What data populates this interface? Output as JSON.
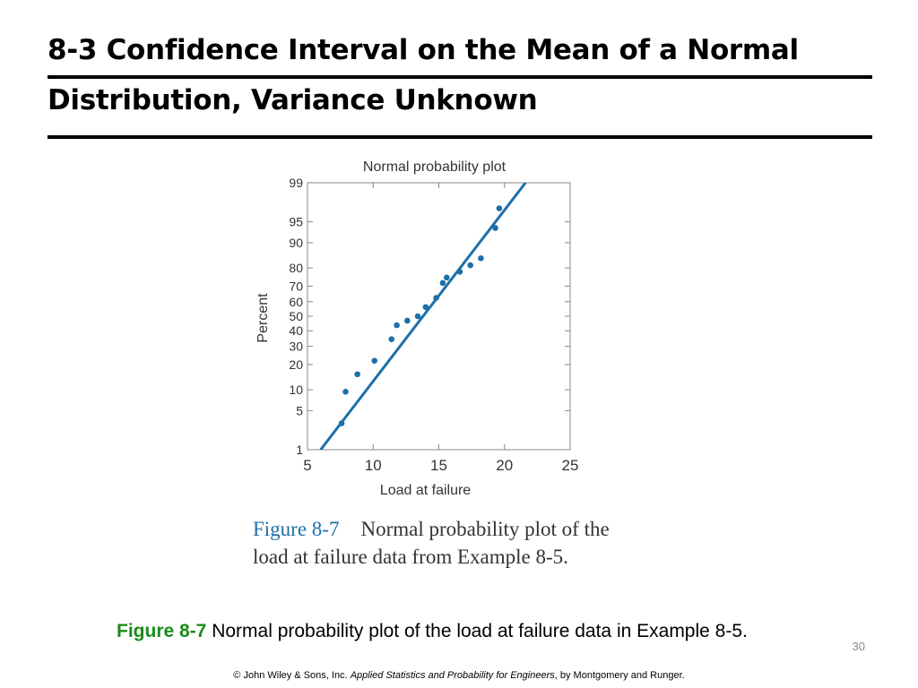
{
  "slide": {
    "title": "8-3 Confidence Interval on the Mean of a Normal Distribution, Variance Unknown",
    "slide_number": "30"
  },
  "book_caption": {
    "figure_ref": "Figure 8-7",
    "text": "Normal probability plot of the load at failure data from Example 8-5."
  },
  "slide_caption": {
    "figure_ref": "Figure 8-7",
    "text": " Normal probability plot of the load at failure data in Example 8-5."
  },
  "footer": {
    "copyright": "© John Wiley & Sons, Inc.",
    "book": "Applied Statistics and Probability for Engineers",
    "authors": ", by Montgomery and Runger."
  },
  "chart_data": {
    "type": "scatter",
    "title": "Normal probability plot",
    "xlabel": "Load at failure",
    "ylabel": "Percent",
    "xlim": [
      5,
      25
    ],
    "x_ticks": [
      5,
      10,
      15,
      20,
      25
    ],
    "y_ticks": [
      1,
      5,
      10,
      20,
      30,
      40,
      50,
      60,
      70,
      80,
      90,
      95,
      99
    ],
    "y_scale": "normal-probability",
    "grid": false,
    "points": [
      {
        "x": 7.6,
        "y": 3.1
      },
      {
        "x": 7.9,
        "y": 9.4
      },
      {
        "x": 8.8,
        "y": 15.6
      },
      {
        "x": 10.1,
        "y": 21.9
      },
      {
        "x": 11.4,
        "y": 34.4
      },
      {
        "x": 11.8,
        "y": 43.8
      },
      {
        "x": 12.6,
        "y": 46.9
      },
      {
        "x": 13.4,
        "y": 50.0
      },
      {
        "x": 14.0,
        "y": 56.3
      },
      {
        "x": 14.8,
        "y": 62.5
      },
      {
        "x": 15.3,
        "y": 71.9
      },
      {
        "x": 15.6,
        "y": 75.0
      },
      {
        "x": 16.6,
        "y": 78.1
      },
      {
        "x": 17.4,
        "y": 81.3
      },
      {
        "x": 18.2,
        "y": 84.4
      },
      {
        "x": 19.3,
        "y": 93.8
      },
      {
        "x": 19.6,
        "y": 97.0
      }
    ],
    "fit_line": {
      "x": [
        6.0,
        21.6
      ],
      "y": [
        1,
        99
      ]
    },
    "colors": {
      "points": "#1d6fa8",
      "line": "#1d6fa8",
      "text": "#333333",
      "axis": "#888888"
    }
  }
}
